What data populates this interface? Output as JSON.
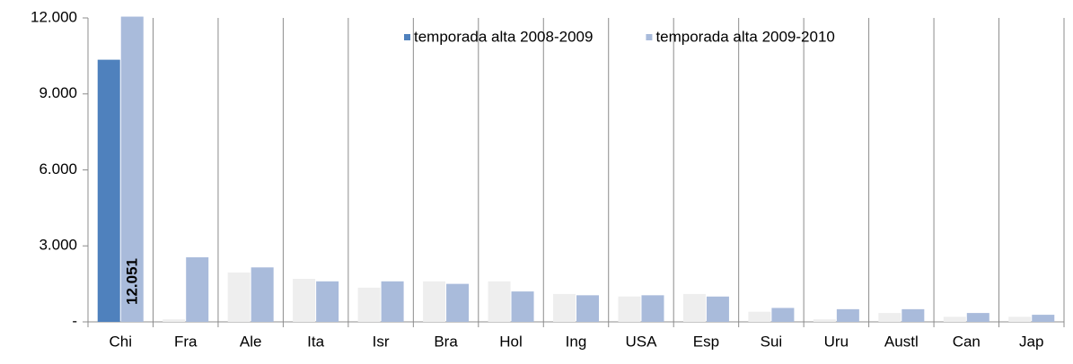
{
  "chart_data": {
    "type": "bar",
    "categories": [
      "Chi",
      "Fra",
      "Ale",
      "Ita",
      "Isr",
      "Bra",
      "Hol",
      "Ing",
      "USA",
      "Esp",
      "Sui",
      "Uru",
      "Austl",
      "Can",
      "Jap"
    ],
    "series": [
      {
        "name": "temporada alta 2008-2009",
        "color": "#4f81bd",
        "colors": [
          "#4f81bd",
          "#eeeeee",
          "#eeeeee",
          "#eeeeee",
          "#eeeeee",
          "#eeeeee",
          "#eeeeee",
          "#eeeeee",
          "#eeeeee",
          "#eeeeee",
          "#eeeeee",
          "#eeeeee",
          "#eeeeee",
          "#eeeeee",
          "#eeeeee"
        ],
        "values": [
          10350,
          100,
          1950,
          1700,
          1350,
          1600,
          1600,
          1100,
          1000,
          1100,
          400,
          100,
          350,
          200,
          200
        ]
      },
      {
        "name": "temporada alta 2009-2010",
        "color": "#a9bbdb",
        "values": [
          12051,
          2550,
          2150,
          1600,
          1600,
          1500,
          1200,
          1050,
          1050,
          1000,
          550,
          500,
          500,
          350,
          280
        ],
        "value_labels": [
          "12.051",
          null,
          null,
          null,
          null,
          null,
          null,
          null,
          null,
          null,
          null,
          null,
          null,
          null,
          null
        ]
      }
    ],
    "ylim": [
      0,
      12000
    ],
    "yticks": [
      {
        "value": 0,
        "label": "-"
      },
      {
        "value": 3000,
        "label": "3.000"
      },
      {
        "value": 6000,
        "label": "6.000"
      },
      {
        "value": 9000,
        "label": "9.000"
      },
      {
        "value": 12000,
        "label": "12.000"
      }
    ],
    "category_grid": true,
    "legend": "top"
  }
}
